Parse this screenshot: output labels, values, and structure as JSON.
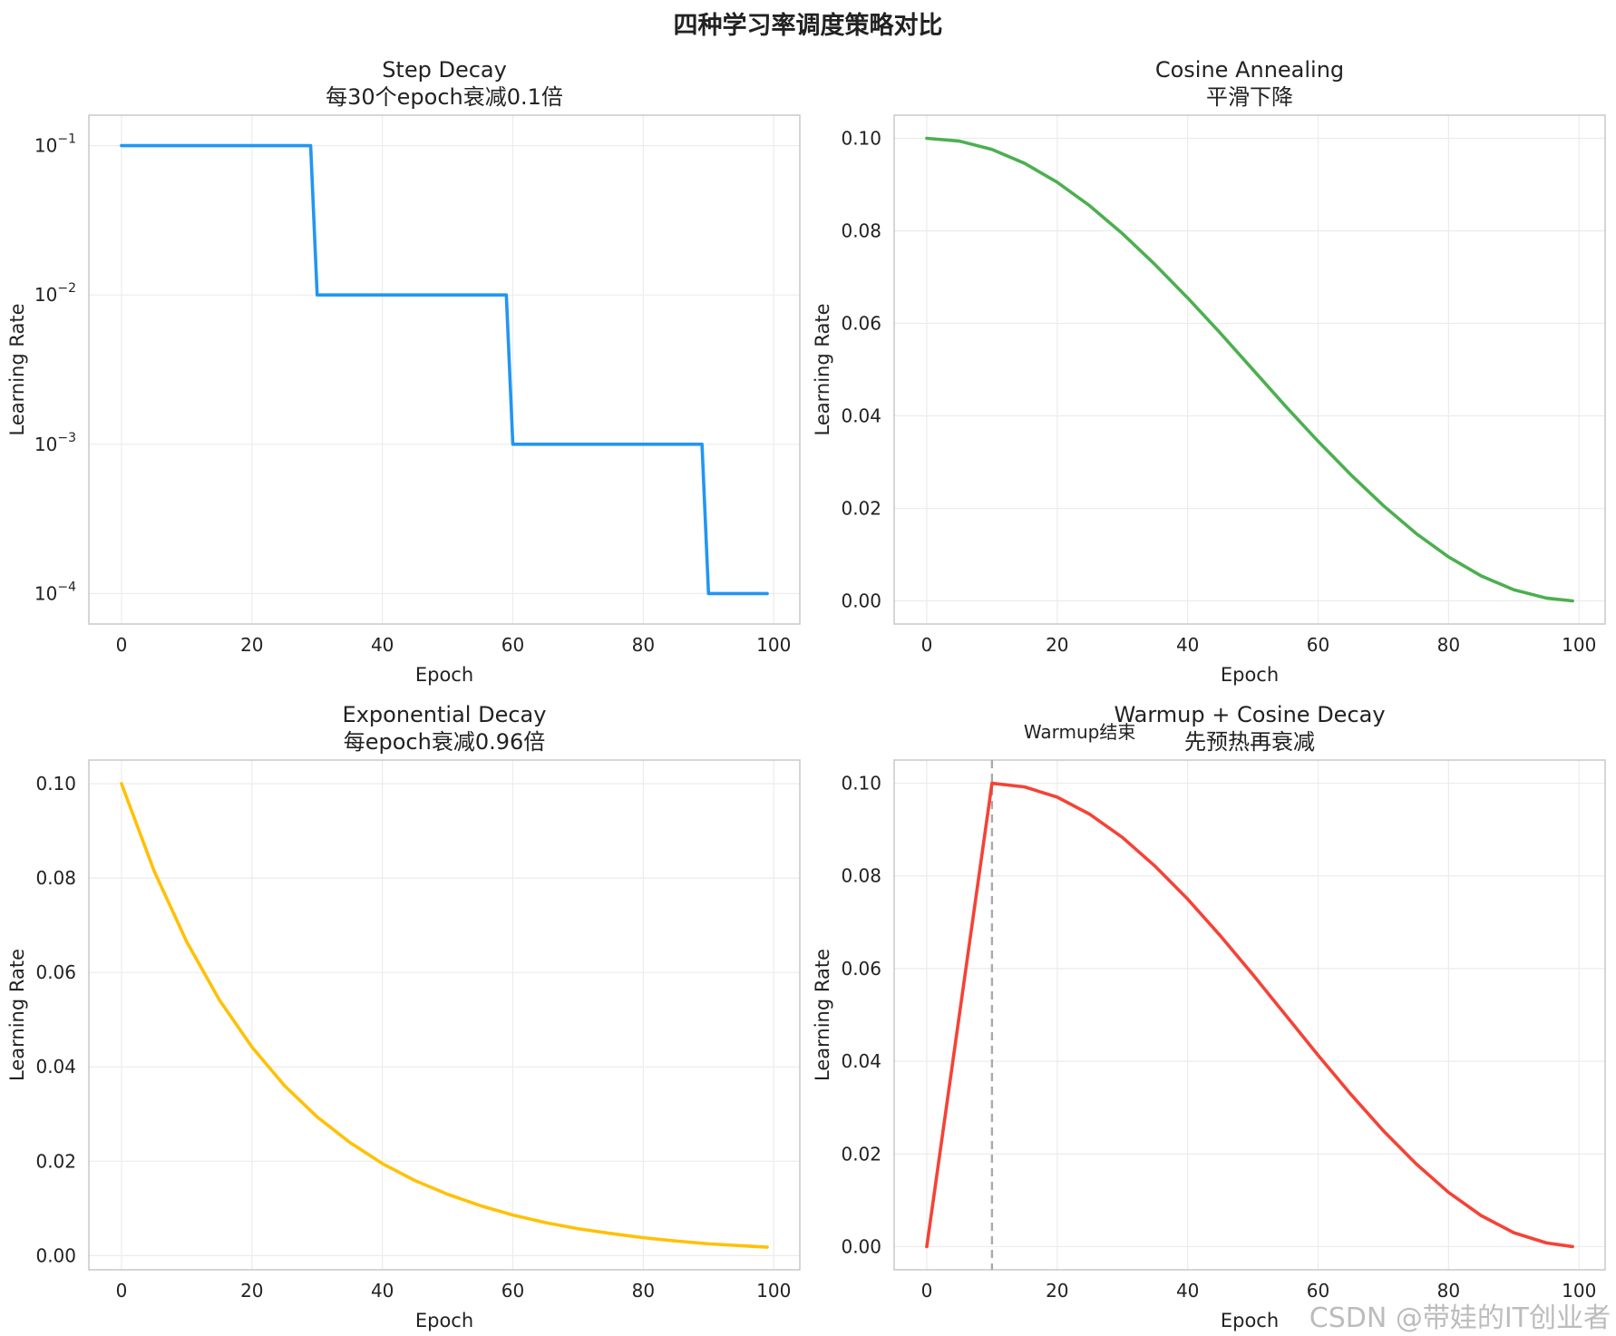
{
  "suptitle": "四种学习率调度策略对比",
  "watermark": "CSDN @带娃的IT创业者",
  "chart_data": [
    {
      "type": "line",
      "title": "Step Decay",
      "subtitle": "每30个epoch衰减0.1倍",
      "xlabel": "Epoch",
      "ylabel": "Learning Rate",
      "yscale": "log",
      "xlim": [
        -5,
        104
      ],
      "ylim": [
        6.25e-05,
        0.16
      ],
      "xticks": [
        0,
        20,
        40,
        60,
        80,
        100
      ],
      "yticks": [
        0.1,
        0.01,
        0.001,
        0.0001
      ],
      "ytick_labels": [
        [
          "10",
          "−1"
        ],
        [
          "10",
          "−2"
        ],
        [
          "10",
          "−3"
        ],
        [
          "10",
          "−4"
        ]
      ],
      "color": "#2196f3",
      "grid": true,
      "series": [
        {
          "x": [
            0,
            29,
            30,
            59,
            60,
            89,
            90,
            99
          ],
          "y": [
            0.1,
            0.1,
            0.01,
            0.01,
            0.001,
            0.001,
            0.0001,
            0.0001
          ]
        }
      ]
    },
    {
      "type": "line",
      "title": "Cosine Annealing",
      "subtitle": "平滑下降",
      "xlabel": "Epoch",
      "ylabel": "Learning Rate",
      "yscale": "linear",
      "xlim": [
        -5,
        104
      ],
      "ylim": [
        -0.005,
        0.105
      ],
      "xticks": [
        0,
        20,
        40,
        60,
        80,
        100
      ],
      "yticks": [
        0.0,
        0.02,
        0.04,
        0.06,
        0.08,
        0.1
      ],
      "ytick_labels": [
        "0.00",
        "0.02",
        "0.04",
        "0.06",
        "0.08",
        "0.10"
      ],
      "color": "#4caf50",
      "grid": true,
      "series": [
        {
          "x": [
            0,
            5,
            10,
            15,
            20,
            25,
            30,
            35,
            40,
            45,
            50,
            55,
            60,
            65,
            70,
            75,
            80,
            85,
            90,
            95,
            99
          ],
          "y": [
            0.1,
            0.0994,
            0.0976,
            0.0946,
            0.0905,
            0.0854,
            0.0794,
            0.0727,
            0.0655,
            0.0579,
            0.05,
            0.0421,
            0.0345,
            0.0273,
            0.0206,
            0.0146,
            0.0095,
            0.0054,
            0.0024,
            0.0006,
            0.0
          ]
        }
      ]
    },
    {
      "type": "line",
      "title": "Exponential Decay",
      "subtitle": "每epoch衰减0.96倍",
      "xlabel": "Epoch",
      "ylabel": "Learning Rate",
      "yscale": "linear",
      "xlim": [
        -5,
        104
      ],
      "ylim": [
        -0.003,
        0.105
      ],
      "xticks": [
        0,
        20,
        40,
        60,
        80,
        100
      ],
      "yticks": [
        0.0,
        0.02,
        0.04,
        0.06,
        0.08,
        0.1
      ],
      "ytick_labels": [
        "0.00",
        "0.02",
        "0.04",
        "0.06",
        "0.08",
        "0.10"
      ],
      "color": "#ffc107",
      "grid": true,
      "series": [
        {
          "x": [
            0,
            5,
            10,
            15,
            20,
            25,
            30,
            35,
            40,
            45,
            50,
            55,
            60,
            65,
            70,
            75,
            80,
            85,
            90,
            95,
            99
          ],
          "y": [
            0.1,
            0.0815,
            0.0665,
            0.0542,
            0.0442,
            0.036,
            0.0294,
            0.024,
            0.0195,
            0.0159,
            0.013,
            0.0106,
            0.0086,
            0.007,
            0.0057,
            0.0047,
            0.0038,
            0.0031,
            0.0025,
            0.0021,
            0.0018
          ]
        }
      ]
    },
    {
      "type": "line",
      "title": "Warmup + Cosine Decay",
      "subtitle": "先预热再衰减",
      "xlabel": "Epoch",
      "ylabel": "Learning Rate",
      "yscale": "linear",
      "xlim": [
        -5,
        104
      ],
      "ylim": [
        -0.005,
        0.105
      ],
      "xticks": [
        0,
        20,
        40,
        60,
        80,
        100
      ],
      "yticks": [
        0.0,
        0.02,
        0.04,
        0.06,
        0.08,
        0.1
      ],
      "ytick_labels": [
        "0.00",
        "0.02",
        "0.04",
        "0.06",
        "0.08",
        "0.10"
      ],
      "color": "#f44336",
      "grid": true,
      "vline": {
        "x": 10,
        "color": "#aaaaaa",
        "label": "Warmup结束"
      },
      "series": [
        {
          "x": [
            0,
            10,
            15,
            20,
            25,
            30,
            35,
            40,
            45,
            50,
            55,
            60,
            65,
            70,
            75,
            80,
            85,
            90,
            95,
            99
          ],
          "y": [
            0.0,
            0.1,
            0.0992,
            0.097,
            0.0933,
            0.0883,
            0.0821,
            0.075,
            0.0671,
            0.0587,
            0.05,
            0.0413,
            0.0329,
            0.025,
            0.0179,
            0.0117,
            0.0067,
            0.003,
            0.0008,
            0.0
          ]
        }
      ]
    }
  ]
}
